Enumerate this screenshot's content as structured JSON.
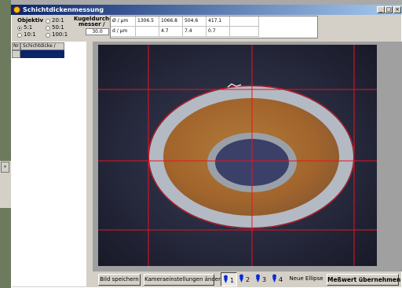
{
  "window": {
    "title": "Schichtdickenmessung",
    "controls": {
      "minimize": "_",
      "maximize": "□",
      "close": "×"
    }
  },
  "objektiv": {
    "label": "Objektiv",
    "options": [
      {
        "label": "5:1",
        "selected": true
      },
      {
        "label": "20:1",
        "selected": false
      },
      {
        "label": "10:1",
        "selected": false
      },
      {
        "label": "50:1",
        "selected": false
      },
      {
        "label": "100:1",
        "selected": false
      }
    ]
  },
  "kugel": {
    "label_line1": "Kugeldurch-",
    "label_line2": "messer /",
    "value": "30.0"
  },
  "measurements": {
    "row1_label": "Ø / µm",
    "row1_values": [
      "1306.5",
      "1066.8",
      "504.6",
      "417.1",
      ""
    ],
    "row2_label": "d / µm",
    "row2_values": [
      "",
      "4.7",
      "7.4",
      "0.7",
      ""
    ]
  },
  "list": {
    "col_nr": "Nr",
    "col_schichtdicke": "Schichtdicke / µm"
  },
  "bottom": {
    "save_image": "Bild speichern",
    "camera_settings": "Kameraeinstellungen ändern",
    "points": [
      "1",
      "2",
      "3",
      "4"
    ],
    "new_ellipse": "Neue Ellipse",
    "accept": "Meßwert übernehmen"
  },
  "colors": {
    "titlebar_start": "#0a246a",
    "titlebar_end": "#a6caf0",
    "crosshair": "#e8141e",
    "pin_blue": "#0a2ad8"
  }
}
